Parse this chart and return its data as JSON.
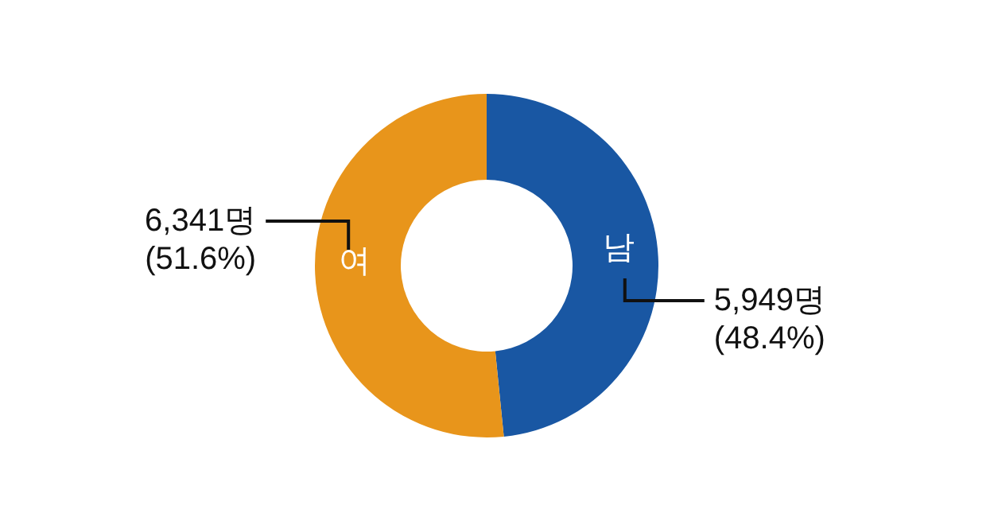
{
  "chart_data": {
    "type": "donut",
    "categories": [
      "남",
      "여"
    ],
    "values": [
      5949,
      6341
    ],
    "colors": [
      "#1957a3",
      "#e8951b"
    ],
    "value_labels": [
      "5,949명\n(48.4%)",
      "6,341명\n(51.6%)"
    ]
  }
}
